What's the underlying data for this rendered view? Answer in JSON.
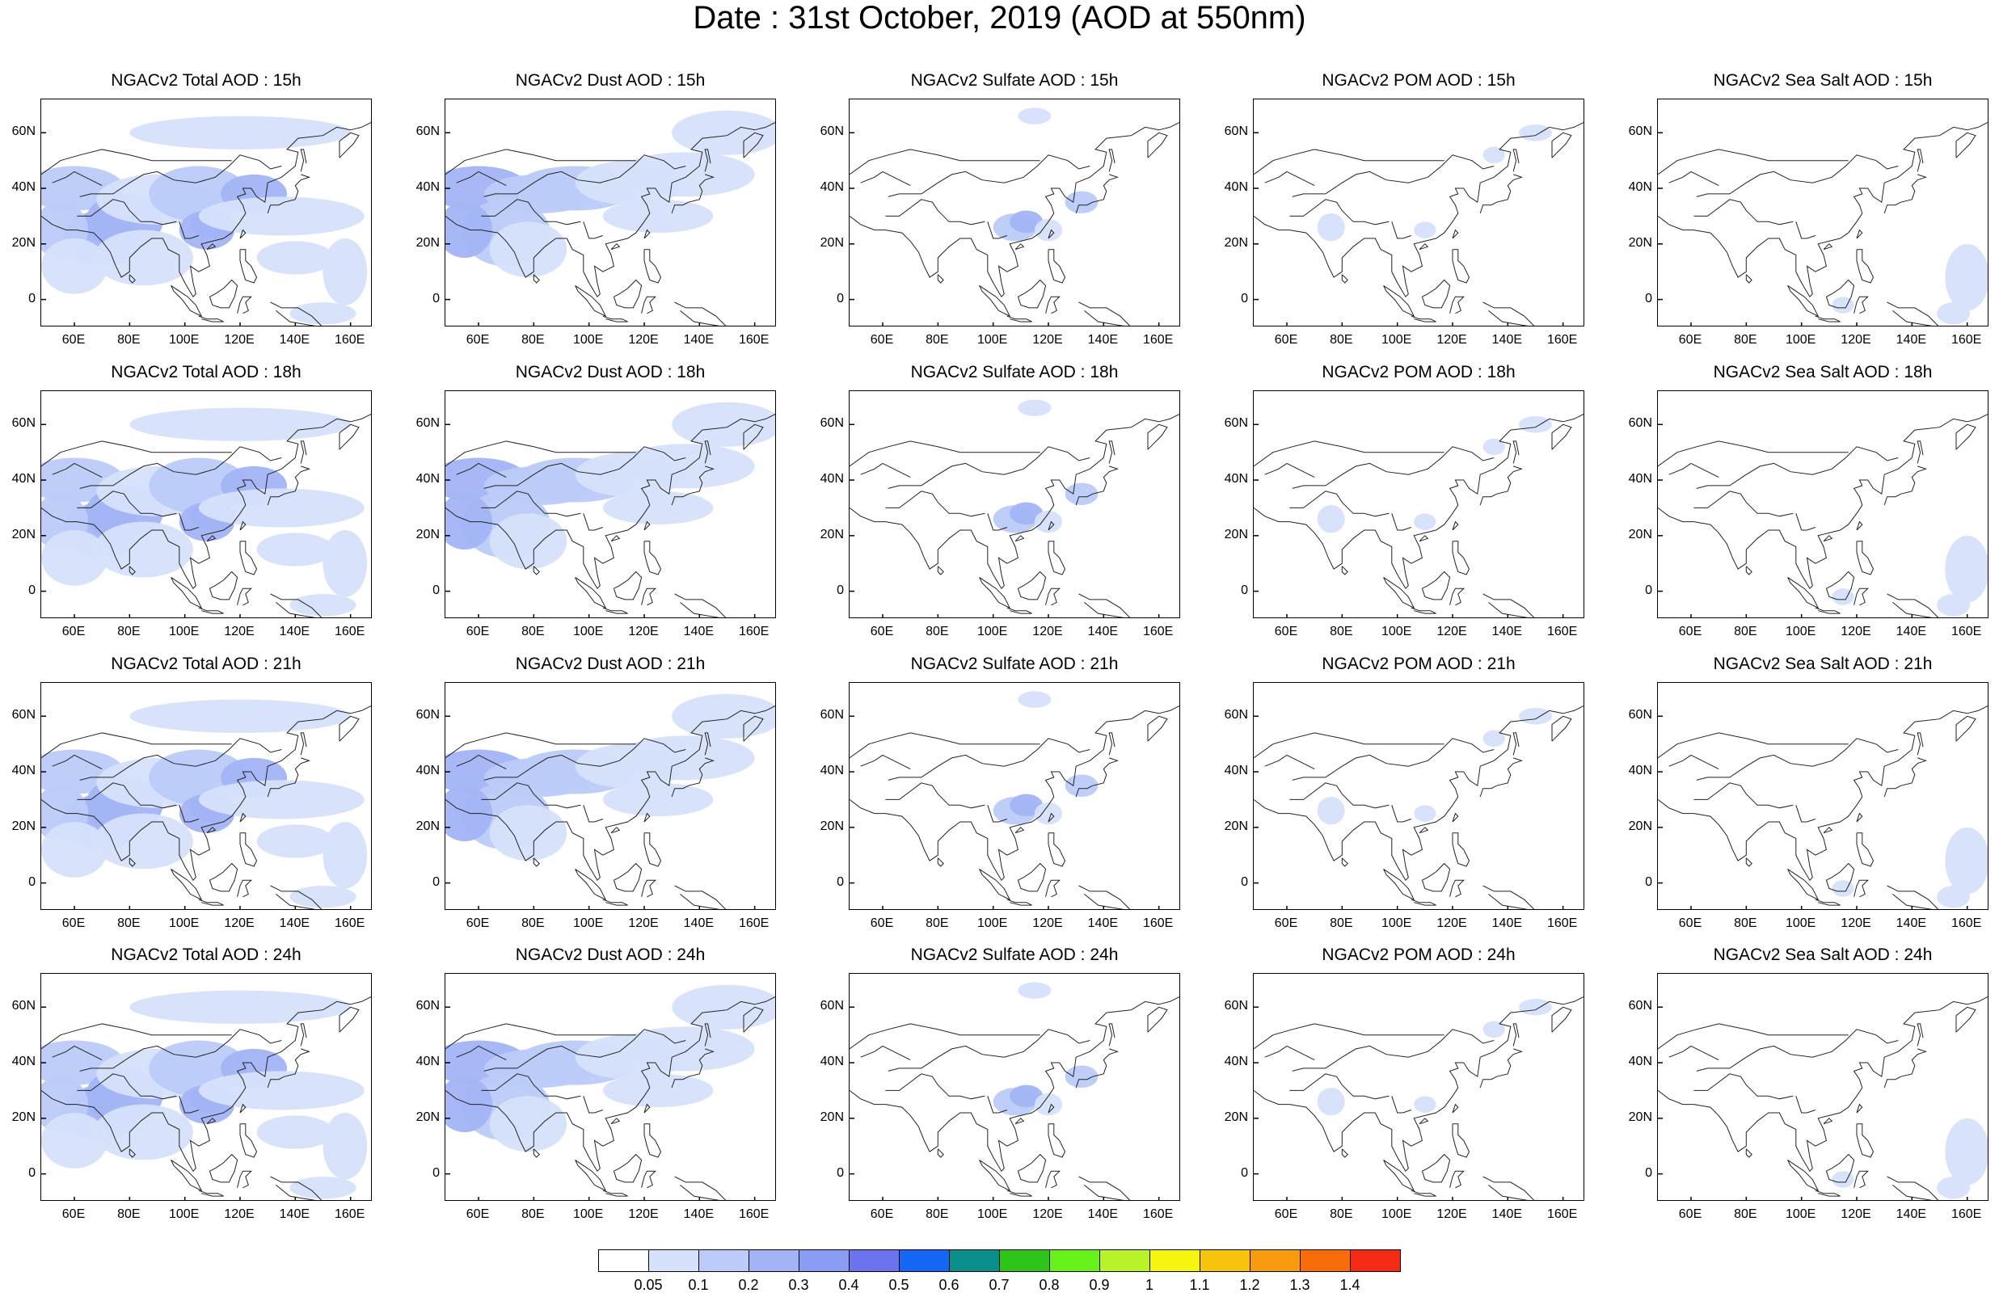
{
  "title": "Date : 31st October, 2019 (AOD at 550nm)",
  "lat_ticks": [
    "60N",
    "40N",
    "20N",
    "0"
  ],
  "lon_ticks": [
    "60E",
    "80E",
    "100E",
    "120E",
    "140E",
    "160E"
  ],
  "panels": [
    {
      "title": "NGACv2 Total AOD : 15h",
      "species": "total",
      "hour": 15
    },
    {
      "title": "NGACv2 Dust AOD : 15h",
      "species": "dust",
      "hour": 15
    },
    {
      "title": "NGACv2 Sulfate AOD : 15h",
      "species": "sulfate",
      "hour": 15
    },
    {
      "title": "NGACv2 POM AOD : 15h",
      "species": "pom",
      "hour": 15
    },
    {
      "title": "NGACv2 Sea Salt AOD : 15h",
      "species": "seasalt",
      "hour": 15
    },
    {
      "title": "NGACv2 Total AOD : 18h",
      "species": "total",
      "hour": 18
    },
    {
      "title": "NGACv2 Dust AOD : 18h",
      "species": "dust",
      "hour": 18
    },
    {
      "title": "NGACv2 Sulfate AOD : 18h",
      "species": "sulfate",
      "hour": 18
    },
    {
      "title": "NGACv2 POM AOD : 18h",
      "species": "pom",
      "hour": 18
    },
    {
      "title": "NGACv2 Sea Salt AOD : 18h",
      "species": "seasalt",
      "hour": 18
    },
    {
      "title": "NGACv2 Total AOD : 21h",
      "species": "total",
      "hour": 21
    },
    {
      "title": "NGACv2 Dust AOD : 21h",
      "species": "dust",
      "hour": 21
    },
    {
      "title": "NGACv2 Sulfate AOD : 21h",
      "species": "sulfate",
      "hour": 21
    },
    {
      "title": "NGACv2 POM AOD : 21h",
      "species": "pom",
      "hour": 21
    },
    {
      "title": "NGACv2 Sea Salt AOD : 21h",
      "species": "seasalt",
      "hour": 21
    },
    {
      "title": "NGACv2 Total AOD : 24h",
      "species": "total",
      "hour": 24
    },
    {
      "title": "NGACv2 Dust AOD : 24h",
      "species": "dust",
      "hour": 24
    },
    {
      "title": "NGACv2 Sulfate AOD : 24h",
      "species": "sulfate",
      "hour": 24
    },
    {
      "title": "NGACv2 POM AOD : 24h",
      "species": "pom",
      "hour": 24
    },
    {
      "title": "NGACv2 Sea Salt  AOD : 24h",
      "species": "seasalt",
      "hour": 24
    }
  ],
  "colorbar": {
    "labels": [
      "0.05",
      "0.1",
      "0.2",
      "0.3",
      "0.4",
      "0.5",
      "0.6",
      "0.7",
      "0.8",
      "0.9",
      "1",
      "1.1",
      "1.2",
      "1.3",
      "1.4"
    ],
    "colors": [
      "#ffffff",
      "#d6e1fb",
      "#bccbf9",
      "#a3b4f6",
      "#8a9cf4",
      "#6b74ee",
      "#1566f5",
      "#0a8f8a",
      "#2ec51b",
      "#66f21a",
      "#b8f32a",
      "#f5f50f",
      "#f8c40b",
      "#f99b0e",
      "#f86d0a",
      "#f52a13"
    ]
  }
}
